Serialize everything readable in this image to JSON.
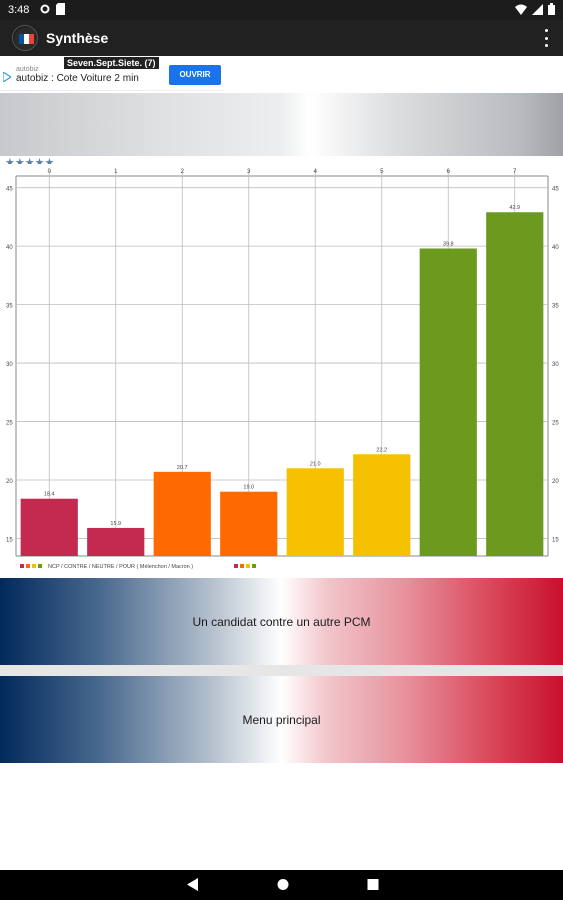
{
  "status_bar": {
    "time": "3:48"
  },
  "app_bar": {
    "title": "Synthèse"
  },
  "ad": {
    "label": "Seven.Sept.Siete. (7)",
    "site": "autobiz",
    "text": "autobiz : Cote Voiture 2 min",
    "button": "OUVRIR"
  },
  "rating": {
    "stars": "★★★★★"
  },
  "colors": {
    "red": "#c4294f",
    "orange": "#ff6a00",
    "yellow": "#f5c000",
    "green": "#6b9a1f"
  },
  "chart_data": {
    "type": "bar",
    "categories": [
      "0",
      "1",
      "2",
      "3",
      "4",
      "5",
      "6",
      "7"
    ],
    "values": [
      18.4,
      15.9,
      20.7,
      19.0,
      21.0,
      22.2,
      39.8,
      42.9
    ],
    "value_labels": [
      "18.4",
      "15.9",
      "20.7",
      "19.0",
      "21.0",
      "22.2",
      "39.8",
      "42.9"
    ],
    "bar_colors": [
      "red",
      "red",
      "orange",
      "orange",
      "yellow",
      "yellow",
      "green",
      "green"
    ],
    "ylim": [
      13.5,
      46
    ],
    "yticks": [
      "15",
      "20",
      "25",
      "30",
      "35",
      "40",
      "45"
    ],
    "grid": true,
    "legend": "bottom-left",
    "legend_text": "NCP / CONTRE / NEUTRE / POUR ( Mélenchon / Macron )",
    "title": "",
    "xlabel": "",
    "ylabel": ""
  },
  "buttons": {
    "compare": "Un candidat contre un autre PCM",
    "menu": "Menu principal"
  }
}
